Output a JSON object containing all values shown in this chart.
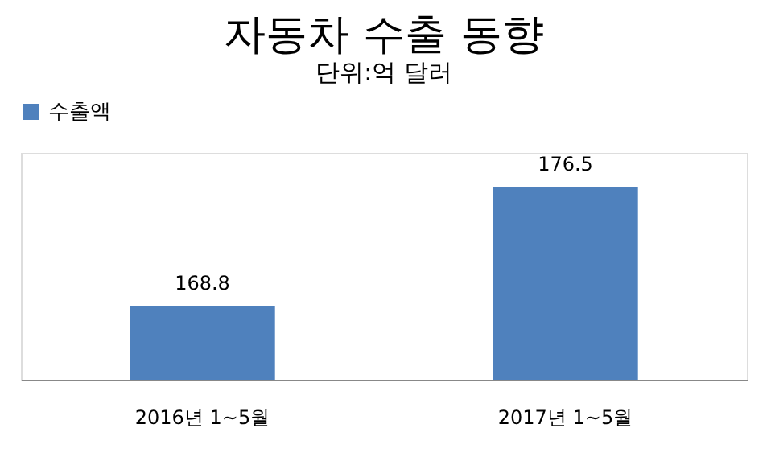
{
  "chart_data": {
    "type": "bar",
    "title": "자동차 수출 동향",
    "subtitle": "단위:억 달러",
    "categories": [
      "2016년 1~5월",
      "2017년 1~5월"
    ],
    "series": [
      {
        "name": "수출액",
        "color": "#4f81bd",
        "values": [
          168.8,
          176.5
        ]
      }
    ],
    "ylim": [
      164,
      178.7
    ],
    "tick_labels": "x",
    "data_labels": true,
    "legend": "top",
    "grid": false
  }
}
